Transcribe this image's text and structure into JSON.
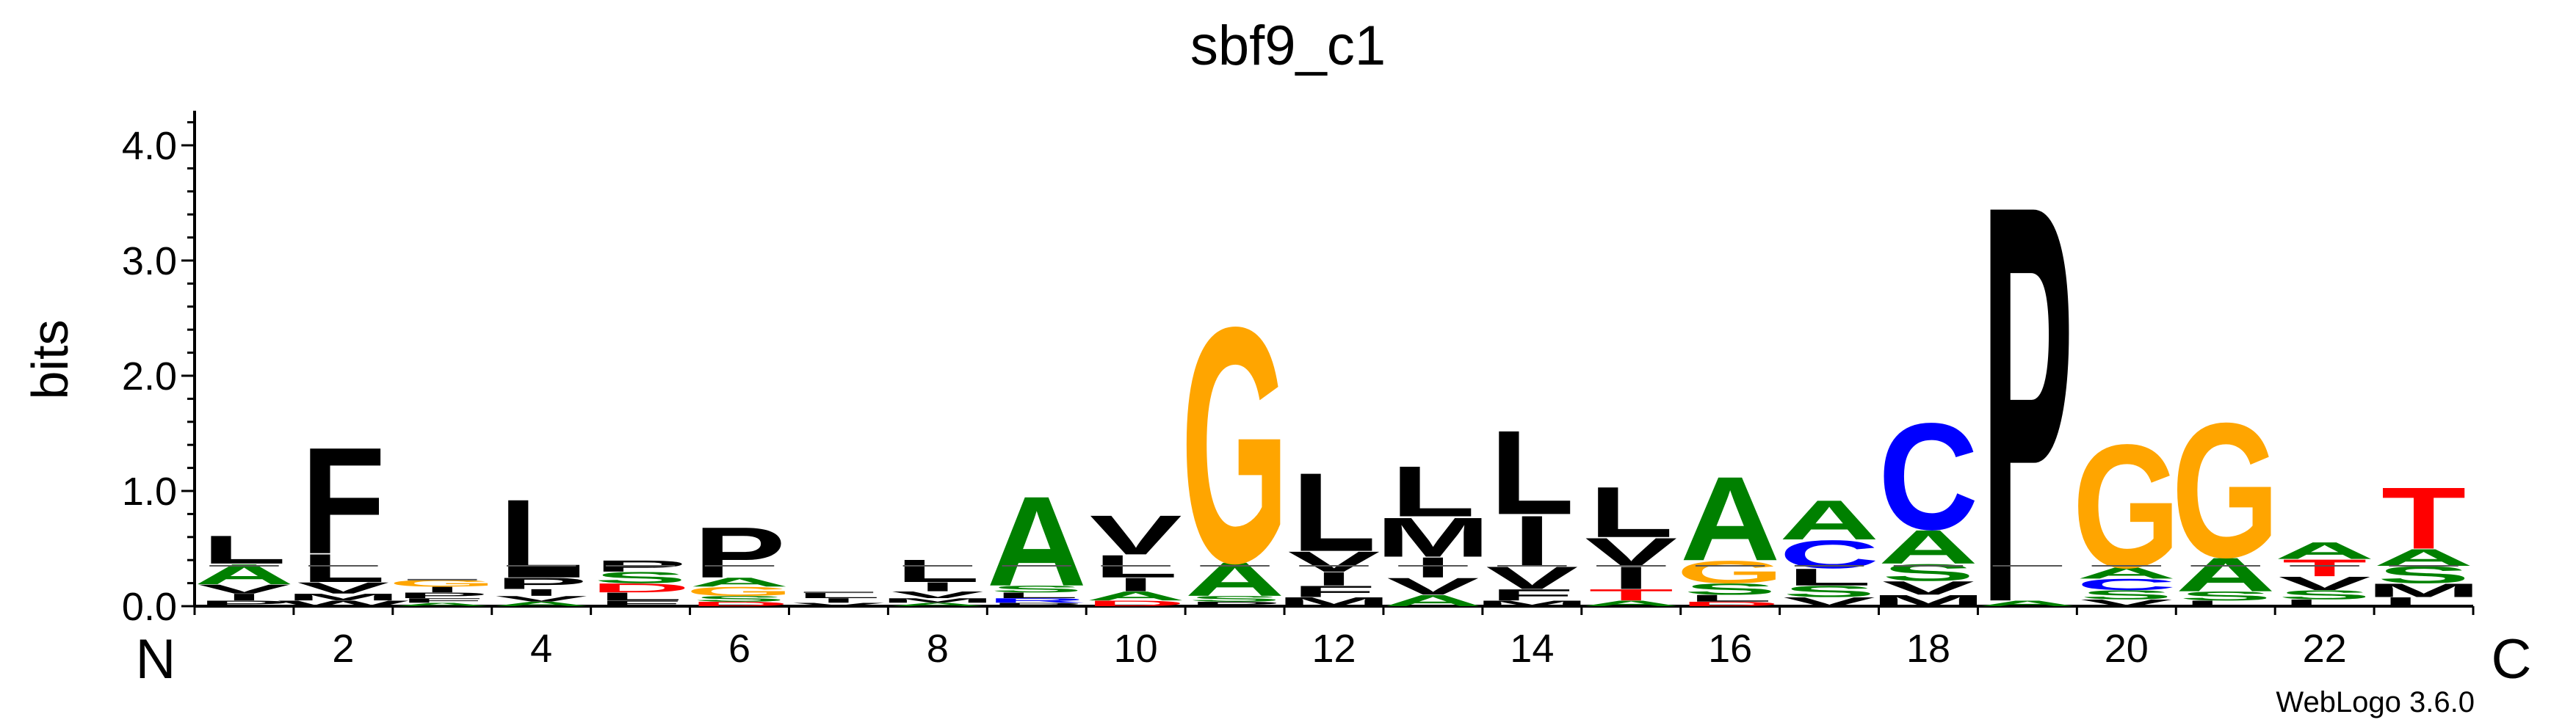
{
  "chart_data": {
    "type": "sequence_logo",
    "title": "sbf9_c1",
    "ylabel": "bits",
    "ylim": [
      0,
      4.3
    ],
    "yticks": [
      "0.0",
      "1.0",
      "2.0",
      "3.0",
      "4.0"
    ],
    "xticks": [
      "2",
      "4",
      "6",
      "8",
      "10",
      "12",
      "14",
      "16",
      "18",
      "20",
      "22"
    ],
    "start_label": "N",
    "end_label": "C",
    "credit": "WebLogo 3.6.0",
    "colors": {
      "hydrophobic": "#000000",
      "polar": "#008000",
      "glycine": "#FFA500",
      "basic": "#0000FF",
      "acidic": "#FF0000"
    },
    "positions": [
      {
        "pos": 1,
        "letters": [
          {
            "c": "L",
            "h": 0.25
          },
          {
            "c": "A",
            "h": 0.18
          },
          {
            "c": "V",
            "h": 0.08
          },
          {
            "c": "I",
            "h": 0.06
          },
          {
            "c": "P",
            "h": 0.05
          }
        ]
      },
      {
        "pos": 2,
        "letters": [
          {
            "c": "F",
            "h": 0.95
          },
          {
            "c": "L",
            "h": 0.25
          },
          {
            "c": "V",
            "h": 0.1
          },
          {
            "c": "M",
            "h": 0.06
          },
          {
            "c": "W",
            "h": 0.05
          }
        ]
      },
      {
        "pos": 3,
        "letters": [
          {
            "c": "G",
            "h": 0.06
          },
          {
            "c": "P",
            "h": 0.05
          },
          {
            "c": "I",
            "h": 0.05
          },
          {
            "c": "F",
            "h": 0.04
          },
          {
            "c": "A",
            "h": 0.03
          }
        ]
      },
      {
        "pos": 4,
        "letters": [
          {
            "c": "L",
            "h": 0.7
          },
          {
            "c": "P",
            "h": 0.1
          },
          {
            "c": "I",
            "h": 0.06
          },
          {
            "c": "V",
            "h": 0.05
          },
          {
            "c": "A",
            "h": 0.04
          }
        ]
      },
      {
        "pos": 5,
        "letters": [
          {
            "c": "S",
            "h": 0.1
          },
          {
            "c": "P",
            "h": 0.1
          },
          {
            "c": "D",
            "h": 0.08
          },
          {
            "c": "L",
            "h": 0.07
          },
          {
            "c": "F",
            "h": 0.05
          }
        ]
      },
      {
        "pos": 6,
        "letters": [
          {
            "c": "P",
            "h": 0.45
          },
          {
            "c": "G",
            "h": 0.08
          },
          {
            "c": "A",
            "h": 0.08
          },
          {
            "c": "S",
            "h": 0.05
          },
          {
            "c": "D",
            "h": 0.04
          }
        ]
      },
      {
        "pos": 7,
        "letters": [
          {
            "c": "L",
            "h": 0.05
          },
          {
            "c": "I",
            "h": 0.04
          },
          {
            "c": "V",
            "h": 0.03
          }
        ]
      },
      {
        "pos": 8,
        "letters": [
          {
            "c": "L",
            "h": 0.2
          },
          {
            "c": "I",
            "h": 0.08
          },
          {
            "c": "V",
            "h": 0.06
          },
          {
            "c": "M",
            "h": 0.04
          },
          {
            "c": "A",
            "h": 0.03
          }
        ]
      },
      {
        "pos": 9,
        "letters": [
          {
            "c": "A",
            "h": 0.8
          },
          {
            "c": "S",
            "h": 0.06
          },
          {
            "c": "L",
            "h": 0.05
          },
          {
            "c": "R",
            "h": 0.04
          },
          {
            "c": "P",
            "h": 0.03
          }
        ]
      },
      {
        "pos": 10,
        "letters": [
          {
            "c": "V",
            "h": 0.35
          },
          {
            "c": "L",
            "h": 0.2
          },
          {
            "c": "I",
            "h": 0.12
          },
          {
            "c": "A",
            "h": 0.08
          },
          {
            "c": "D",
            "h": 0.05
          }
        ]
      },
      {
        "pos": 11,
        "letters": [
          {
            "c": "G",
            "h": 2.1
          },
          {
            "c": "A",
            "h": 0.3
          },
          {
            "c": "S",
            "h": 0.05
          },
          {
            "c": "P",
            "h": 0.04
          }
        ]
      },
      {
        "pos": 12,
        "letters": [
          {
            "c": "L",
            "h": 0.7
          },
          {
            "c": "V",
            "h": 0.18
          },
          {
            "c": "I",
            "h": 0.12
          },
          {
            "c": "F",
            "h": 0.1
          },
          {
            "c": "M",
            "h": 0.08
          }
        ]
      },
      {
        "pos": 13,
        "letters": [
          {
            "c": "L",
            "h": 0.45
          },
          {
            "c": "M",
            "h": 0.35
          },
          {
            "c": "I",
            "h": 0.18
          },
          {
            "c": "V",
            "h": 0.15
          },
          {
            "c": "A",
            "h": 0.1
          }
        ]
      },
      {
        "pos": 14,
        "letters": [
          {
            "c": "L",
            "h": 0.75
          },
          {
            "c": "I",
            "h": 0.45
          },
          {
            "c": "V",
            "h": 0.2
          },
          {
            "c": "F",
            "h": 0.1
          },
          {
            "c": "M",
            "h": 0.05
          }
        ]
      },
      {
        "pos": 15,
        "letters": [
          {
            "c": "L",
            "h": 0.45
          },
          {
            "c": "V",
            "h": 0.25
          },
          {
            "c": "I",
            "h": 0.2
          },
          {
            "c": "T",
            "h": 0.1
          },
          {
            "c": "A",
            "h": 0.05
          }
        ]
      },
      {
        "pos": 16,
        "letters": [
          {
            "c": "A",
            "h": 0.75
          },
          {
            "c": "G",
            "h": 0.2
          },
          {
            "c": "S",
            "h": 0.1
          },
          {
            "c": "L",
            "h": 0.06
          },
          {
            "c": "D",
            "h": 0.04
          }
        ]
      },
      {
        "pos": 17,
        "letters": [
          {
            "c": "A",
            "h": 0.35
          },
          {
            "c": "C",
            "h": 0.25
          },
          {
            "c": "L",
            "h": 0.15
          },
          {
            "c": "S",
            "h": 0.1
          },
          {
            "c": "V",
            "h": 0.08
          }
        ]
      },
      {
        "pos": 18,
        "letters": [
          {
            "c": "C",
            "h": 0.95
          },
          {
            "c": "A",
            "h": 0.3
          },
          {
            "c": "S",
            "h": 0.15
          },
          {
            "c": "V",
            "h": 0.12
          },
          {
            "c": "M",
            "h": 0.1
          }
        ]
      },
      {
        "pos": 19,
        "letters": [
          {
            "c": "P",
            "h": 3.55
          },
          {
            "c": "A",
            "h": 0.05
          }
        ]
      },
      {
        "pos": 20,
        "letters": [
          {
            "c": "G",
            "h": 1.1
          },
          {
            "c": "C",
            "h": 0.1
          },
          {
            "c": "A",
            "h": 0.1
          },
          {
            "c": "S",
            "h": 0.08
          },
          {
            "c": "V",
            "h": 0.06
          }
        ]
      },
      {
        "pos": 21,
        "letters": [
          {
            "c": "G",
            "h": 1.2
          },
          {
            "c": "A",
            "h": 0.3
          },
          {
            "c": "S",
            "h": 0.08
          },
          {
            "c": "L",
            "h": 0.05
          }
        ]
      },
      {
        "pos": 22,
        "letters": [
          {
            "c": "T",
            "h": 0.15
          },
          {
            "c": "A",
            "h": 0.15
          },
          {
            "c": "V",
            "h": 0.12
          },
          {
            "c": "S",
            "h": 0.08
          },
          {
            "c": "L",
            "h": 0.06
          }
        ]
      },
      {
        "pos": 23,
        "letters": [
          {
            "c": "T",
            "h": 0.55
          },
          {
            "c": "S",
            "h": 0.15
          },
          {
            "c": "A",
            "h": 0.15
          },
          {
            "c": "M",
            "h": 0.12
          },
          {
            "c": "L",
            "h": 0.08
          }
        ]
      }
    ]
  }
}
